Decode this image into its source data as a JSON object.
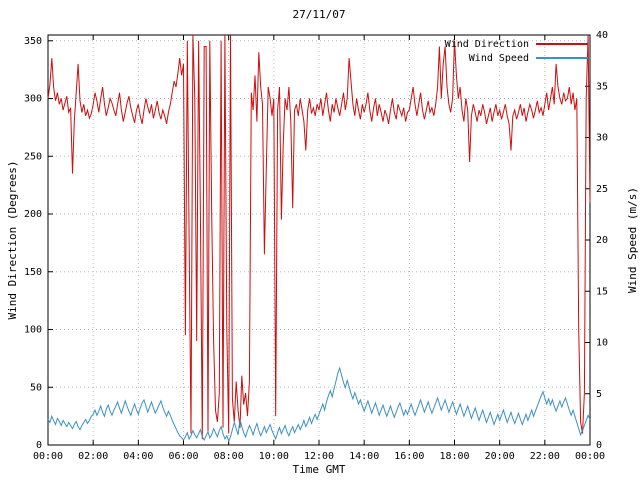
{
  "chart_data": {
    "type": "line",
    "title": "27/11/07",
    "xlabel": "Time GMT",
    "ylabel": "Wind Direction (Degrees)",
    "y2label": "Wind Speed (m/s)",
    "grid": true,
    "legend_position": "top-right-inside",
    "background": "#ffffff",
    "grid_color": "#b8b8b8",
    "x_unit": "minutes since 00:00 GMT",
    "t0_min": 0,
    "dt_min": 5,
    "x_range_min": [
      0,
      1440
    ],
    "y_range": [
      0,
      355
    ],
    "y2_range": [
      0,
      40
    ],
    "x_ticks": [
      {
        "min": 0,
        "label": "00:00"
      },
      {
        "min": 120,
        "label": "02:00"
      },
      {
        "min": 240,
        "label": "04:00"
      },
      {
        "min": 360,
        "label": "06:00"
      },
      {
        "min": 480,
        "label": "08:00"
      },
      {
        "min": 600,
        "label": "10:00"
      },
      {
        "min": 720,
        "label": "12:00"
      },
      {
        "min": 840,
        "label": "14:00"
      },
      {
        "min": 960,
        "label": "16:00"
      },
      {
        "min": 1080,
        "label": "18:00"
      },
      {
        "min": 1200,
        "label": "20:00"
      },
      {
        "min": 1320,
        "label": "22:00"
      },
      {
        "min": 1440,
        "label": "00:00"
      }
    ],
    "y_ticks": [
      0,
      50,
      100,
      150,
      200,
      250,
      300,
      350
    ],
    "y2_ticks": [
      0,
      5,
      10,
      15,
      20,
      25,
      30,
      35,
      40
    ],
    "series": [
      {
        "name": "Wind Direction",
        "axis": "y",
        "color": "#cc0e0e",
        "values": [
          300,
          312,
          335,
          310,
          298,
          305,
          295,
          300,
          290,
          296,
          302,
          288,
          292,
          235,
          280,
          305,
          330,
          298,
          288,
          295,
          285,
          290,
          283,
          287,
          295,
          305,
          298,
          288,
          300,
          310,
          295,
          285,
          292,
          300,
          296,
          290,
          285,
          295,
          305,
          290,
          280,
          288,
          296,
          302,
          292,
          285,
          279,
          290,
          295,
          285,
          278,
          290,
          300,
          293,
          287,
          295,
          283,
          290,
          298,
          288,
          282,
          290,
          285,
          278,
          288,
          295,
          305,
          315,
          310,
          322,
          335,
          320,
          330,
          95,
          350,
          180,
          10,
          355,
          300,
          90,
          350,
          200,
          5,
          345,
          345,
          10,
          350,
          200,
          90,
          30,
          20,
          45,
          350,
          15,
          355,
          100,
          10,
          355,
          40,
          20,
          55,
          30,
          15,
          60,
          35,
          45,
          25,
          55,
          305,
          290,
          320,
          280,
          340,
          310,
          295,
          165,
          240,
          310,
          300,
          285,
          300,
          25,
          290,
          310,
          195,
          260,
          300,
          290,
          310,
          280,
          205,
          290,
          295,
          285,
          300,
          290,
          280,
          255,
          290,
          300,
          287,
          292,
          285,
          295,
          290,
          300,
          285,
          295,
          305,
          290,
          280,
          295,
          288,
          300,
          292,
          285,
          295,
          305,
          290,
          300,
          335,
          315,
          295,
          285,
          300,
          290,
          282,
          295,
          288,
          295,
          305,
          290,
          280,
          292,
          300,
          285,
          295,
          288,
          280,
          290,
          285,
          278,
          290,
          300,
          288,
          282,
          295,
          290,
          285,
          292,
          280,
          288,
          290,
          300,
          310,
          295,
          285,
          295,
          305,
          290,
          282,
          290,
          298,
          288,
          292,
          285,
          295,
          310,
          345,
          300,
          330,
          345,
          310,
          295,
          288,
          300,
          350,
          320,
          300,
          310,
          290,
          280,
          300,
          290,
          245,
          285,
          295,
          288,
          280,
          290,
          285,
          295,
          288,
          278,
          285,
          292,
          280,
          288,
          295,
          285,
          290,
          282,
          288,
          295,
          285,
          278,
          255,
          285,
          290,
          282,
          288,
          295,
          285,
          292,
          280,
          288,
          295,
          290,
          283,
          290,
          298,
          288,
          292,
          285,
          295,
          305,
          290,
          300,
          310,
          295,
          330,
          310,
          300,
          295,
          305,
          298,
          300,
          310,
          295,
          305,
          290,
          300,
          100,
          20,
          10,
          45,
          300,
          355,
          210
        ]
      },
      {
        "name": "Wind Speed",
        "axis": "y2",
        "color": "#3d90c4",
        "values": [
          2.5,
          2.2,
          2.8,
          2.4,
          2.0,
          2.6,
          2.3,
          1.9,
          2.4,
          2.1,
          1.8,
          2.2,
          1.9,
          1.6,
          2.0,
          2.3,
          1.8,
          1.5,
          1.9,
          2.2,
          2.5,
          2.1,
          2.4,
          2.8,
          3.0,
          3.4,
          2.9,
          3.3,
          3.8,
          3.2,
          2.8,
          3.5,
          3.9,
          3.3,
          2.9,
          3.4,
          3.8,
          4.2,
          3.6,
          3.1,
          3.7,
          4.3,
          3.8,
          3.3,
          2.9,
          3.5,
          4.0,
          3.4,
          3.0,
          3.6,
          4.1,
          4.4,
          3.8,
          3.2,
          3.7,
          4.2,
          3.6,
          3.1,
          3.5,
          3.9,
          4.3,
          3.7,
          3.2,
          2.8,
          3.3,
          2.9,
          2.4,
          2.0,
          1.6,
          1.2,
          0.9,
          0.7,
          0.5,
          0.8,
          1.2,
          0.6,
          0.9,
          1.4,
          1.0,
          0.7,
          1.1,
          1.5,
          0.8,
          0.5,
          0.9,
          1.3,
          0.7,
          1.0,
          1.6,
          1.2,
          0.8,
          1.4,
          1.8,
          1.1,
          0.6,
          0.9,
          0.4,
          0.8,
          1.5,
          2.2,
          1.6,
          1.0,
          2.5,
          1.8,
          1.2,
          0.8,
          1.4,
          1.9,
          1.5,
          1.0,
          1.6,
          2.1,
          1.4,
          0.9,
          1.3,
          1.8,
          1.2,
          1.6,
          2.0,
          1.4,
          1.0,
          0.6,
          1.2,
          1.7,
          1.1,
          1.5,
          1.9,
          1.3,
          0.9,
          1.4,
          1.8,
          1.2,
          1.6,
          2.0,
          1.5,
          1.9,
          2.4,
          1.8,
          2.2,
          2.7,
          2.1,
          2.6,
          3.0,
          2.5,
          3.0,
          3.5,
          4.0,
          3.4,
          4.2,
          4.8,
          5.3,
          4.7,
          5.5,
          6.2,
          7.0,
          7.5,
          6.8,
          6.1,
          5.6,
          6.3,
          5.7,
          5.0,
          4.5,
          5.1,
          4.6,
          4.0,
          4.4,
          3.8,
          3.3,
          3.8,
          4.3,
          3.7,
          3.1,
          3.6,
          4.1,
          3.5,
          2.9,
          3.4,
          3.9,
          3.3,
          2.8,
          3.3,
          3.8,
          3.2,
          2.7,
          3.2,
          3.7,
          4.1,
          3.5,
          2.9,
          3.4,
          3.0,
          3.5,
          4.0,
          3.4,
          2.9,
          3.4,
          3.9,
          4.4,
          3.8,
          3.2,
          3.7,
          4.2,
          3.6,
          3.1,
          3.6,
          4.1,
          4.6,
          4.0,
          3.4,
          3.9,
          4.4,
          3.8,
          3.2,
          3.7,
          4.2,
          3.6,
          3.0,
          3.5,
          4.0,
          3.4,
          2.8,
          3.3,
          3.8,
          3.2,
          2.6,
          3.1,
          3.6,
          3.0,
          2.4,
          2.9,
          3.4,
          2.8,
          2.2,
          2.7,
          3.2,
          2.6,
          2.0,
          2.5,
          3.0,
          2.4,
          2.9,
          3.4,
          2.8,
          2.2,
          2.7,
          3.2,
          2.6,
          2.1,
          2.6,
          3.1,
          2.5,
          2.0,
          2.5,
          3.0,
          2.4,
          2.9,
          3.4,
          2.8,
          3.3,
          3.8,
          4.3,
          4.8,
          5.2,
          4.6,
          4.0,
          4.5,
          3.9,
          4.4,
          3.8,
          3.3,
          3.8,
          4.3,
          3.7,
          4.2,
          4.6,
          4.0,
          3.4,
          2.9,
          3.4,
          2.8,
          2.2,
          1.6,
          1.0,
          1.4,
          1.9,
          2.4,
          2.9,
          2.5
        ]
      }
    ]
  }
}
